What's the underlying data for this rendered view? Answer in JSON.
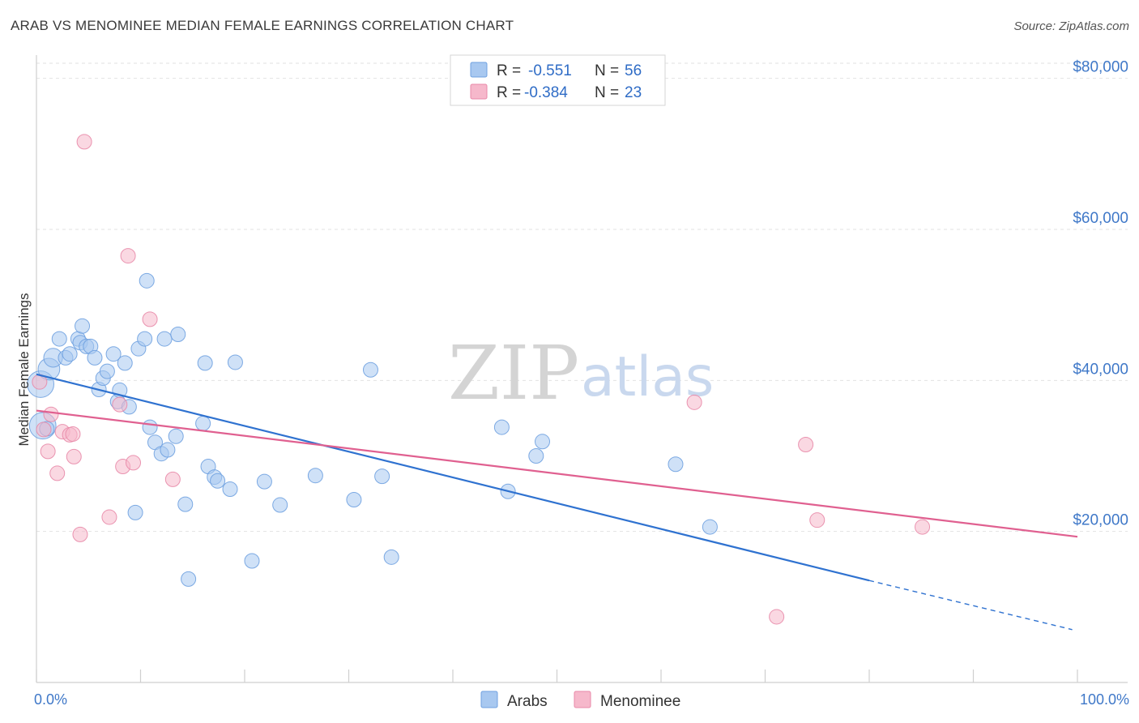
{
  "header": {
    "title": "ARAB VS MENOMINEE MEDIAN FEMALE EARNINGS CORRELATION CHART",
    "source": "Source: ZipAtlas.com"
  },
  "watermark": {
    "zip": "ZIP",
    "atlas": "atlas"
  },
  "legend": {
    "rows": [
      {
        "r_label": "R =",
        "r_value": "-0.551",
        "n_label": "N =",
        "n_value": "56",
        "color": "#a8c8f0",
        "border": "#6fa1e0"
      },
      {
        "r_label": "R =",
        "r_value": "-0.384",
        "n_label": "N =",
        "n_value": "23",
        "color": "#f6b8cb",
        "border": "#e889a8"
      }
    ]
  },
  "bottom_legend": {
    "items": [
      "Arabs",
      "Menominee"
    ]
  },
  "colors": {
    "arabs_fill": "#a8c8f0",
    "arabs_stroke": "#6fa1e0",
    "arabs_line": "#2f72d0",
    "menominee_fill": "#f6b8cb",
    "menominee_stroke": "#e889a8",
    "menominee_line": "#e06090",
    "axis_label": "#3f78c8",
    "grid": "#e2e2e2"
  },
  "chart_data": {
    "type": "scatter",
    "title": "ARAB VS MENOMINEE MEDIAN FEMALE EARNINGS CORRELATION CHART",
    "xlabel": "",
    "ylabel": "Median Female Earnings",
    "xlim": [
      0,
      100
    ],
    "ylim": [
      0,
      82000
    ],
    "x_tick_labels": [
      "0.0%",
      "100.0%"
    ],
    "y_ticks": [
      20000,
      40000,
      60000,
      80000
    ],
    "y_tick_labels": [
      "$20,000",
      "$40,000",
      "$60,000",
      "$80,000"
    ],
    "grid": true,
    "series": [
      {
        "name": "Arabs",
        "points": [
          [
            0.4,
            39500,
            3
          ],
          [
            0.6,
            34000,
            3
          ],
          [
            1.2,
            41500,
            2
          ],
          [
            1.6,
            43000,
            1.5
          ],
          [
            2.2,
            45500,
            1
          ],
          [
            2.8,
            43000,
            1
          ],
          [
            3.2,
            43500,
            1
          ],
          [
            4.0,
            45500,
            1
          ],
          [
            4.2,
            45000,
            1
          ],
          [
            4.4,
            47200,
            1
          ],
          [
            4.8,
            44500,
            1
          ],
          [
            5.2,
            44500,
            1
          ],
          [
            5.6,
            43000,
            1
          ],
          [
            6.0,
            38800,
            1
          ],
          [
            6.4,
            40300,
            1
          ],
          [
            6.8,
            41200,
            1
          ],
          [
            7.4,
            43500,
            1
          ],
          [
            7.8,
            37200,
            1
          ],
          [
            8.0,
            38700,
            1
          ],
          [
            8.5,
            42300,
            1
          ],
          [
            8.9,
            36500,
            1
          ],
          [
            9.5,
            22500,
            1
          ],
          [
            9.8,
            44200,
            1
          ],
          [
            10.4,
            45500,
            1
          ],
          [
            10.6,
            53200,
            1
          ],
          [
            10.9,
            33800,
            1
          ],
          [
            11.4,
            31800,
            1
          ],
          [
            12.0,
            30300,
            1
          ],
          [
            12.3,
            45500,
            1
          ],
          [
            12.6,
            30800,
            1
          ],
          [
            13.4,
            32600,
            1
          ],
          [
            13.6,
            46100,
            1
          ],
          [
            14.3,
            23600,
            1
          ],
          [
            14.6,
            13700,
            1
          ],
          [
            16.0,
            34300,
            1
          ],
          [
            16.2,
            42300,
            1
          ],
          [
            16.5,
            28600,
            1
          ],
          [
            17.1,
            27200,
            1
          ],
          [
            17.4,
            26700,
            1
          ],
          [
            18.6,
            25600,
            1
          ],
          [
            19.1,
            42400,
            1
          ],
          [
            20.7,
            16100,
            1
          ],
          [
            21.9,
            26600,
            1
          ],
          [
            23.4,
            23500,
            1
          ],
          [
            26.8,
            27400,
            1
          ],
          [
            30.5,
            24200,
            1
          ],
          [
            32.1,
            41400,
            1
          ],
          [
            33.2,
            27300,
            1
          ],
          [
            34.1,
            16600,
            1
          ],
          [
            44.7,
            33800,
            1
          ],
          [
            45.3,
            25300,
            1
          ],
          [
            48.0,
            30000,
            1
          ],
          [
            48.6,
            31900,
            1
          ],
          [
            61.4,
            28900,
            1
          ],
          [
            64.7,
            20600,
            1
          ],
          [
            1.0,
            33600,
            1
          ]
        ],
        "trend": {
          "x0": 0,
          "y0": 40800,
          "x1": 80,
          "y1": 13500,
          "dash_to_x": 99.5,
          "dash_to_y": 7000
        }
      },
      {
        "name": "Menominee",
        "points": [
          [
            0.3,
            39800,
            1
          ],
          [
            0.7,
            33500,
            1
          ],
          [
            1.1,
            30600,
            1
          ],
          [
            1.4,
            35500,
            1
          ],
          [
            2.0,
            27700,
            1
          ],
          [
            2.5,
            33200,
            1
          ],
          [
            3.2,
            32800,
            1
          ],
          [
            3.5,
            32900,
            1
          ],
          [
            3.6,
            29900,
            1
          ],
          [
            4.2,
            19600,
            1
          ],
          [
            4.6,
            71600,
            1
          ],
          [
            7.0,
            21900,
            1
          ],
          [
            8.0,
            36800,
            1
          ],
          [
            8.3,
            28600,
            1
          ],
          [
            8.8,
            56500,
            1
          ],
          [
            9.3,
            29100,
            1
          ],
          [
            10.9,
            48100,
            1
          ],
          [
            13.1,
            26900,
            1
          ],
          [
            63.2,
            37100,
            1
          ],
          [
            71.1,
            8700,
            1
          ],
          [
            73.9,
            31500,
            1
          ],
          [
            75.0,
            21500,
            1
          ],
          [
            85.1,
            20600,
            1
          ]
        ],
        "trend": {
          "x0": 0,
          "y0": 36000,
          "x1": 100,
          "y1": 19300
        }
      }
    ]
  }
}
